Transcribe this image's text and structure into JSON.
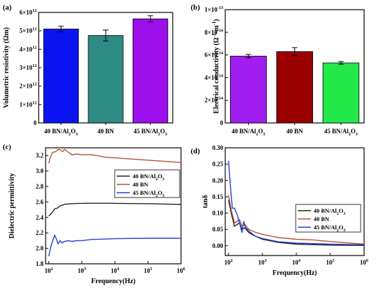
{
  "chart_data": [
    {
      "panel": "(a)",
      "type": "bar",
      "ylabel": "Volumetric resistivity  (Ωm)",
      "ylim": [
        0,
        6000000000000.0
      ],
      "yticks": [
        {
          "value": 0,
          "label": "0"
        },
        {
          "value": 1000000000000.0,
          "label": "1×10^12"
        },
        {
          "value": 2000000000000.0,
          "label": "2×10^12"
        },
        {
          "value": 3000000000000.0,
          "label": "3×10^12"
        },
        {
          "value": 4000000000000.0,
          "label": "4×10^12"
        },
        {
          "value": 5000000000000.0,
          "label": "5×10^12"
        },
        {
          "value": 6000000000000.0,
          "label": "6×10^12"
        }
      ],
      "categories": [
        "40 BN/Al2O3",
        "40 BN",
        "45 BN/Al2O3"
      ],
      "values": [
        5100000000000.0,
        4750000000000.0,
        5650000000000.0
      ],
      "errors": [
        150000000000.0,
        300000000000.0,
        170000000000.0
      ],
      "colors": [
        "#0a14f0",
        "#2e8b84",
        "#9b10ea"
      ]
    },
    {
      "panel": "(b)",
      "type": "bar",
      "ylabel": "Electrical conductivity  (Ω^-1·m^-1)",
      "ylim": [
        0,
        1e-13
      ],
      "yticks": [
        {
          "value": 0,
          "label": "0"
        },
        {
          "value": 2e-14,
          "label": "2×10^-14"
        },
        {
          "value": 4e-14,
          "label": "4×10^-14"
        },
        {
          "value": 6e-14,
          "label": "6×10^-14"
        },
        {
          "value": 8e-14,
          "label": "8×10^-14"
        },
        {
          "value": 1e-13,
          "label": "1×10^-13"
        }
      ],
      "categories": [
        "40 BN/Al2O3",
        "40 BN",
        "45 BN/Al2O3"
      ],
      "values": [
        5.9e-14,
        6.3e-14,
        5.3e-14
      ],
      "errors": [
        1.5e-15,
        3.5e-15,
        1.2e-15
      ],
      "colors": [
        "#a11ef0",
        "#9b0000",
        "#22e84a"
      ]
    },
    {
      "panel": "(c)",
      "type": "line",
      "xlabel": "Frequency(Hz)",
      "ylabel": "Dielectric permittivity",
      "xscale": "log",
      "xlim": [
        80,
        1000000.0
      ],
      "ylim": [
        1.8,
        3.3
      ],
      "xticks": [
        {
          "value": 100,
          "label": "10^2"
        },
        {
          "value": 1000,
          "label": "10^3"
        },
        {
          "value": 10000,
          "label": "10^4"
        },
        {
          "value": 100000,
          "label": "10^5"
        },
        {
          "value": 1000000,
          "label": "10^6"
        }
      ],
      "yticks": [
        {
          "value": 1.8,
          "label": "1.8"
        },
        {
          "value": 2.0,
          "label": "2.0"
        },
        {
          "value": 2.2,
          "label": "2.2"
        },
        {
          "value": 2.4,
          "label": "2.4"
        },
        {
          "value": 2.6,
          "label": "2.6"
        },
        {
          "value": 2.8,
          "label": "2.8"
        },
        {
          "value": 3.0,
          "label": "3.0"
        },
        {
          "value": 3.2,
          "label": "3.2"
        }
      ],
      "legend_position": "right",
      "series": [
        {
          "name": "40 BN/Al2O3",
          "color": "#222222",
          "x": [
            100,
            120,
            150,
            180,
            220,
            260,
            300,
            400,
            500,
            700,
            1000,
            2000,
            5000,
            10000,
            100000,
            1000000
          ],
          "y": [
            2.42,
            2.45,
            2.51,
            2.52,
            2.55,
            2.56,
            2.57,
            2.575,
            2.578,
            2.58,
            2.582,
            2.583,
            2.583,
            2.582,
            2.578,
            2.568
          ]
        },
        {
          "name": "40 BN",
          "color": "#b5502a",
          "x": [
            100,
            110,
            130,
            160,
            180,
            200,
            230,
            260,
            300,
            400,
            500,
            700,
            1000,
            2000,
            5000,
            10000,
            100000,
            1000000
          ],
          "y": [
            3.1,
            3.17,
            3.24,
            3.25,
            3.27,
            3.28,
            3.27,
            3.25,
            3.28,
            3.24,
            3.21,
            3.22,
            3.21,
            3.21,
            3.18,
            3.17,
            3.14,
            3.11
          ]
        },
        {
          "name": "45 BN/Al2O3",
          "color": "#1e3fd8",
          "x": [
            100,
            120,
            150,
            170,
            190,
            220,
            250,
            300,
            400,
            500,
            700,
            1000,
            2000,
            5000,
            10000,
            100000,
            1000000
          ],
          "y": [
            1.9,
            2.05,
            2.17,
            2.12,
            2.06,
            2.1,
            2.07,
            2.09,
            2.1,
            2.09,
            2.1,
            2.1,
            2.115,
            2.12,
            2.125,
            2.13,
            2.13
          ]
        }
      ]
    },
    {
      "panel": "(d)",
      "type": "line",
      "xlabel": "Frequency(Hz)",
      "ylabel": "tanδ",
      "xscale": "log",
      "xlim": [
        80,
        1000000.0
      ],
      "ylim": [
        -0.03,
        0.3
      ],
      "xticks": [
        {
          "value": 100,
          "label": "10^2"
        },
        {
          "value": 1000,
          "label": "10^3"
        },
        {
          "value": 10000,
          "label": "10^4"
        },
        {
          "value": 100000,
          "label": "10^5"
        },
        {
          "value": 1000000,
          "label": "10^6"
        }
      ],
      "yticks": [
        {
          "value": 0.0,
          "label": "0.00"
        },
        {
          "value": 0.05,
          "label": "0.05"
        },
        {
          "value": 0.1,
          "label": "0.10"
        },
        {
          "value": 0.15,
          "label": "0.15"
        },
        {
          "value": 0.2,
          "label": "0.20"
        },
        {
          "value": 0.25,
          "label": "0.25"
        },
        {
          "value": 0.3,
          "label": "0.30"
        }
      ],
      "legend_position": "right",
      "series": [
        {
          "name": "40 BN/Al2O3",
          "color": "#222222",
          "x": [
            100,
            120,
            150,
            180,
            210,
            250,
            300,
            400,
            600,
            1000,
            3000,
            10000,
            100000,
            1000000
          ],
          "y": [
            0.14,
            0.1,
            0.06,
            0.065,
            0.07,
            0.05,
            0.055,
            0.04,
            0.03,
            0.02,
            0.01,
            0.005,
            0.002,
            0.001
          ]
        },
        {
          "name": "40 BN",
          "color": "#b5502a",
          "x": [
            100,
            120,
            150,
            180,
            210,
            250,
            300,
            400,
            600,
            1000,
            3000,
            10000,
            30000,
            100000,
            1000000
          ],
          "y": [
            0.155,
            0.11,
            0.07,
            0.075,
            0.08,
            0.06,
            0.065,
            0.05,
            0.042,
            0.035,
            0.025,
            0.02,
            0.018,
            0.013,
            0.005
          ]
        },
        {
          "name": "45 BN/Al2O3",
          "color": "#1e3fd8",
          "x": [
            100,
            110,
            130,
            150,
            180,
            210,
            250,
            280,
            320,
            400,
            600,
            1000,
            3000,
            10000,
            100000,
            1000000
          ],
          "y": [
            0.26,
            0.2,
            0.115,
            0.115,
            0.095,
            0.07,
            0.04,
            0.075,
            0.055,
            0.045,
            0.03,
            0.022,
            0.012,
            0.008,
            0.005,
            0.003
          ]
        }
      ]
    }
  ]
}
